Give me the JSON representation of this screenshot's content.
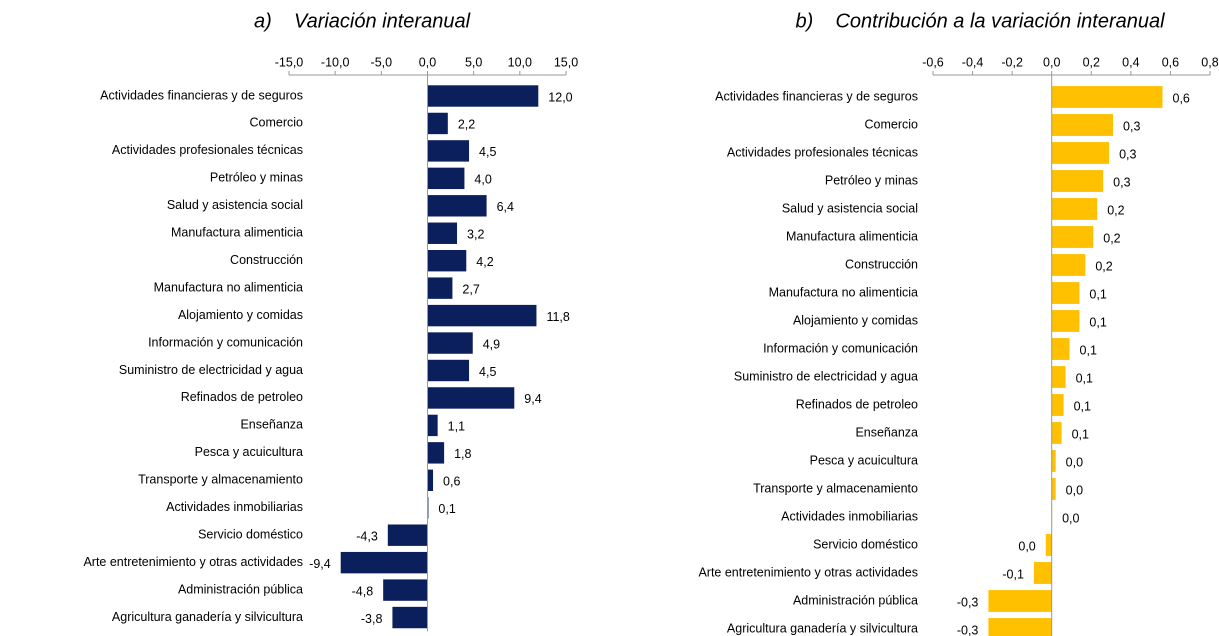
{
  "chart_data": [
    {
      "type": "bar",
      "orientation": "horizontal",
      "title": "a)    Variación interanual",
      "categories": [
        "Actividades financieras y de seguros",
        "Comercio",
        "Actividades profesionales técnicas",
        "Petróleo y minas",
        "Salud y asistencia social",
        "Manufactura alimenticia",
        "Construcción",
        "Manufactura no alimenticia",
        "Alojamiento y comidas",
        "Información y comunicación",
        "Suministro de electricidad y agua",
        "Refinados de petroleo",
        "Enseñanza",
        "Pesca y acuicultura",
        "Transporte y almacenamiento",
        "Actividades inmobiliarias",
        "Servicio doméstico",
        "Arte entretenimiento y otras actividades",
        "Administración pública",
        "Agricultura  ganadería y silvicultura"
      ],
      "values": [
        12.0,
        2.2,
        4.5,
        4.0,
        6.4,
        3.2,
        4.2,
        2.7,
        11.8,
        4.9,
        4.5,
        9.4,
        1.1,
        1.8,
        0.6,
        0.1,
        -4.3,
        -9.4,
        -4.8,
        -3.8
      ],
      "value_labels": [
        "12,0",
        "2,2",
        "4,5",
        "4,0",
        "6,4",
        "3,2",
        "4,2",
        "2,7",
        "11,8",
        "4,9",
        "4,5",
        "9,4",
        "1,1",
        "1,8",
        "0,6",
        "0,1",
        "-4,3",
        "-9,4",
        "-4,8",
        "-3,8"
      ],
      "color": "#0b1f5c",
      "xlim": [
        -15,
        15
      ],
      "xticks": [
        {
          "value": -15,
          "label": "-15,0"
        },
        {
          "value": -10,
          "label": "-10,0"
        },
        {
          "value": -5,
          "label": "-5,0"
        },
        {
          "value": 0,
          "label": "0,0"
        },
        {
          "value": 5,
          "label": "5,0"
        },
        {
          "value": 10,
          "label": "10,0"
        },
        {
          "value": 15,
          "label": "15,0"
        }
      ]
    },
    {
      "type": "bar",
      "orientation": "horizontal",
      "title": "b)    Contribución a la variación interanual",
      "categories": [
        "Actividades financieras y de seguros",
        "Comercio",
        "Actividades profesionales técnicas",
        "Petróleo y minas",
        "Salud y asistencia social",
        "Manufactura alimenticia",
        "Construcción",
        "Manufactura no alimenticia",
        "Alojamiento y comidas",
        "Información y comunicación",
        "Suministro de electricidad y agua",
        "Refinados de petroleo",
        "Enseñanza",
        "Pesca y acuicultura",
        "Transporte y almacenamiento",
        "Actividades inmobiliarias",
        "Servicio doméstico",
        "Arte entretenimiento y otras actividades",
        "Administración pública",
        "Agricultura  ganadería y silvicultura"
      ],
      "values": [
        0.56,
        0.31,
        0.29,
        0.26,
        0.23,
        0.21,
        0.17,
        0.14,
        0.14,
        0.09,
        0.07,
        0.06,
        0.05,
        0.02,
        0.02,
        0.002,
        -0.03,
        -0.09,
        -0.32,
        -0.32
      ],
      "value_labels": [
        "0,6",
        "0,3",
        "0,3",
        "0,3",
        "0,2",
        "0,2",
        "0,2",
        "0,1",
        "0,1",
        "0,1",
        "0,1",
        "0,1",
        "0,1",
        "0,0",
        "0,0",
        "0,0",
        "0,0",
        "-0,1",
        "-0,3",
        "-0,3"
      ],
      "color": "#ffc000",
      "xlim": [
        -0.6,
        0.8
      ],
      "xticks": [
        {
          "value": -0.6,
          "label": "-0,6"
        },
        {
          "value": -0.4,
          "label": "-0,4"
        },
        {
          "value": -0.2,
          "label": "-0,2"
        },
        {
          "value": 0,
          "label": "0,0"
        },
        {
          "value": 0.2,
          "label": "0,2"
        },
        {
          "value": 0.4,
          "label": "0,4"
        },
        {
          "value": 0.6,
          "label": "0,6"
        },
        {
          "value": 0.8,
          "label": "0,8"
        }
      ]
    }
  ]
}
